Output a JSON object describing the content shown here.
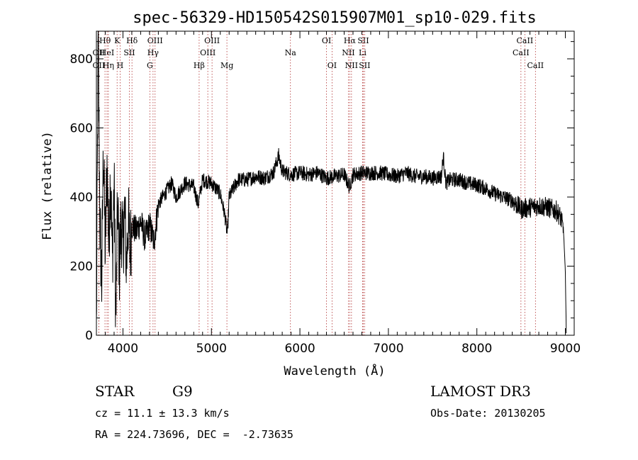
{
  "chart_data": {
    "type": "line",
    "title": "spec-56329-HD150542S015907M01_sp10-029.fits",
    "xlabel": "Wavelength (Å)",
    "ylabel": "Flux (relative)",
    "xlim": [
      3700,
      9100
    ],
    "ylim": [
      0,
      880
    ],
    "x_ticks": [
      4000,
      5000,
      6000,
      7000,
      8000,
      9000
    ],
    "y_ticks": [
      0,
      200,
      400,
      600,
      800
    ],
    "series": [
      {
        "name": "flux",
        "anchors": [
          [
            3700,
            10
          ],
          [
            3720,
            860
          ],
          [
            3740,
            320
          ],
          [
            3760,
            150
          ],
          [
            3780,
            560
          ],
          [
            3800,
            230
          ],
          [
            3820,
            500
          ],
          [
            3840,
            260
          ],
          [
            3860,
            480
          ],
          [
            3880,
            210
          ],
          [
            3900,
            440
          ],
          [
            3920,
            40
          ],
          [
            3940,
            380
          ],
          [
            3960,
            200
          ],
          [
            3980,
            330
          ],
          [
            4000,
            260
          ],
          [
            4020,
            360
          ],
          [
            4040,
            200
          ],
          [
            4060,
            340
          ],
          [
            4080,
            240
          ],
          [
            4100,
            320
          ],
          [
            4150,
            300
          ],
          [
            4200,
            330
          ],
          [
            4250,
            280
          ],
          [
            4300,
            320
          ],
          [
            4350,
            270
          ],
          [
            4400,
            380
          ],
          [
            4450,
            400
          ],
          [
            4500,
            420
          ],
          [
            4550,
            440
          ],
          [
            4600,
            400
          ],
          [
            4700,
            440
          ],
          [
            4800,
            430
          ],
          [
            4850,
            380
          ],
          [
            4900,
            450
          ],
          [
            5000,
            440
          ],
          [
            5100,
            410
          ],
          [
            5150,
            350
          ],
          [
            5180,
            290
          ],
          [
            5200,
            400
          ],
          [
            5300,
            450
          ],
          [
            5400,
            450
          ],
          [
            5500,
            460
          ],
          [
            5600,
            455
          ],
          [
            5700,
            470
          ],
          [
            5760,
            520
          ],
          [
            5800,
            475
          ],
          [
            5900,
            465
          ],
          [
            6000,
            470
          ],
          [
            6100,
            465
          ],
          [
            6200,
            470
          ],
          [
            6300,
            455
          ],
          [
            6400,
            460
          ],
          [
            6500,
            465
          ],
          [
            6560,
            430
          ],
          [
            6600,
            465
          ],
          [
            6700,
            470
          ],
          [
            6800,
            470
          ],
          [
            6900,
            470
          ],
          [
            7000,
            465
          ],
          [
            7100,
            460
          ],
          [
            7200,
            470
          ],
          [
            7300,
            460
          ],
          [
            7400,
            460
          ],
          [
            7500,
            455
          ],
          [
            7600,
            460
          ],
          [
            7620,
            520
          ],
          [
            7650,
            440
          ],
          [
            7700,
            450
          ],
          [
            7800,
            450
          ],
          [
            7900,
            440
          ],
          [
            8000,
            435
          ],
          [
            8100,
            425
          ],
          [
            8200,
            410
          ],
          [
            8300,
            400
          ],
          [
            8400,
            390
          ],
          [
            8500,
            365
          ],
          [
            8600,
            370
          ],
          [
            8700,
            375
          ],
          [
            8800,
            370
          ],
          [
            8900,
            360
          ],
          [
            8950,
            340
          ],
          [
            8980,
            300
          ],
          [
            9000,
            180
          ],
          [
            9010,
            10
          ]
        ]
      }
    ],
    "line_markers": [
      {
        "label": "OII",
        "x": 3727,
        "row": 2
      },
      {
        "label": "OII",
        "x": 3727,
        "row": 3
      },
      {
        "label": "Hθ",
        "x": 3797,
        "row": 1
      },
      {
        "label": "HeI",
        "x": 3820,
        "row": 2
      },
      {
        "label": "Hη",
        "x": 3835,
        "row": 3
      },
      {
        "label": "K",
        "x": 3934,
        "row": 1
      },
      {
        "label": "H",
        "x": 3968,
        "row": 3
      },
      {
        "label": "SII",
        "x": 4072,
        "row": 2
      },
      {
        "label": "Hδ",
        "x": 4102,
        "row": 1
      },
      {
        "label": "OIII",
        "x": 4363,
        "row": 1
      },
      {
        "label": "Hγ",
        "x": 4340,
        "row": 2
      },
      {
        "label": "G",
        "x": 4304,
        "row": 3
      },
      {
        "label": "Hβ",
        "x": 4861,
        "row": 3
      },
      {
        "label": "OIII",
        "x": 5007,
        "row": 1
      },
      {
        "label": "OIII",
        "x": 4959,
        "row": 2
      },
      {
        "label": "Mg",
        "x": 5175,
        "row": 3
      },
      {
        "label": "Na",
        "x": 5893,
        "row": 2
      },
      {
        "label": "OI",
        "x": 6300,
        "row": 1
      },
      {
        "label": "OI",
        "x": 6363,
        "row": 3
      },
      {
        "label": "Hα",
        "x": 6563,
        "row": 1
      },
      {
        "label": "NII",
        "x": 6548,
        "row": 2
      },
      {
        "label": "NII",
        "x": 6583,
        "row": 3
      },
      {
        "label": "SII",
        "x": 6716,
        "row": 1
      },
      {
        "label": "Li",
        "x": 6708,
        "row": 2
      },
      {
        "label": "SII",
        "x": 6731,
        "row": 3
      },
      {
        "label": "CaII",
        "x": 8542,
        "row": 1
      },
      {
        "label": "CaII",
        "x": 8498,
        "row": 2
      },
      {
        "label": "CaII",
        "x": 8662,
        "row": 3
      }
    ]
  },
  "info": {
    "object_class": "STAR",
    "subclass": "G9",
    "survey": "LAMOST DR3",
    "cz": "cz = 11.1 ± 13.3 km/s",
    "obs_date": "Obs-Date: 20130205",
    "coords": "RA = 224.73696, DEC =  -2.73635"
  }
}
